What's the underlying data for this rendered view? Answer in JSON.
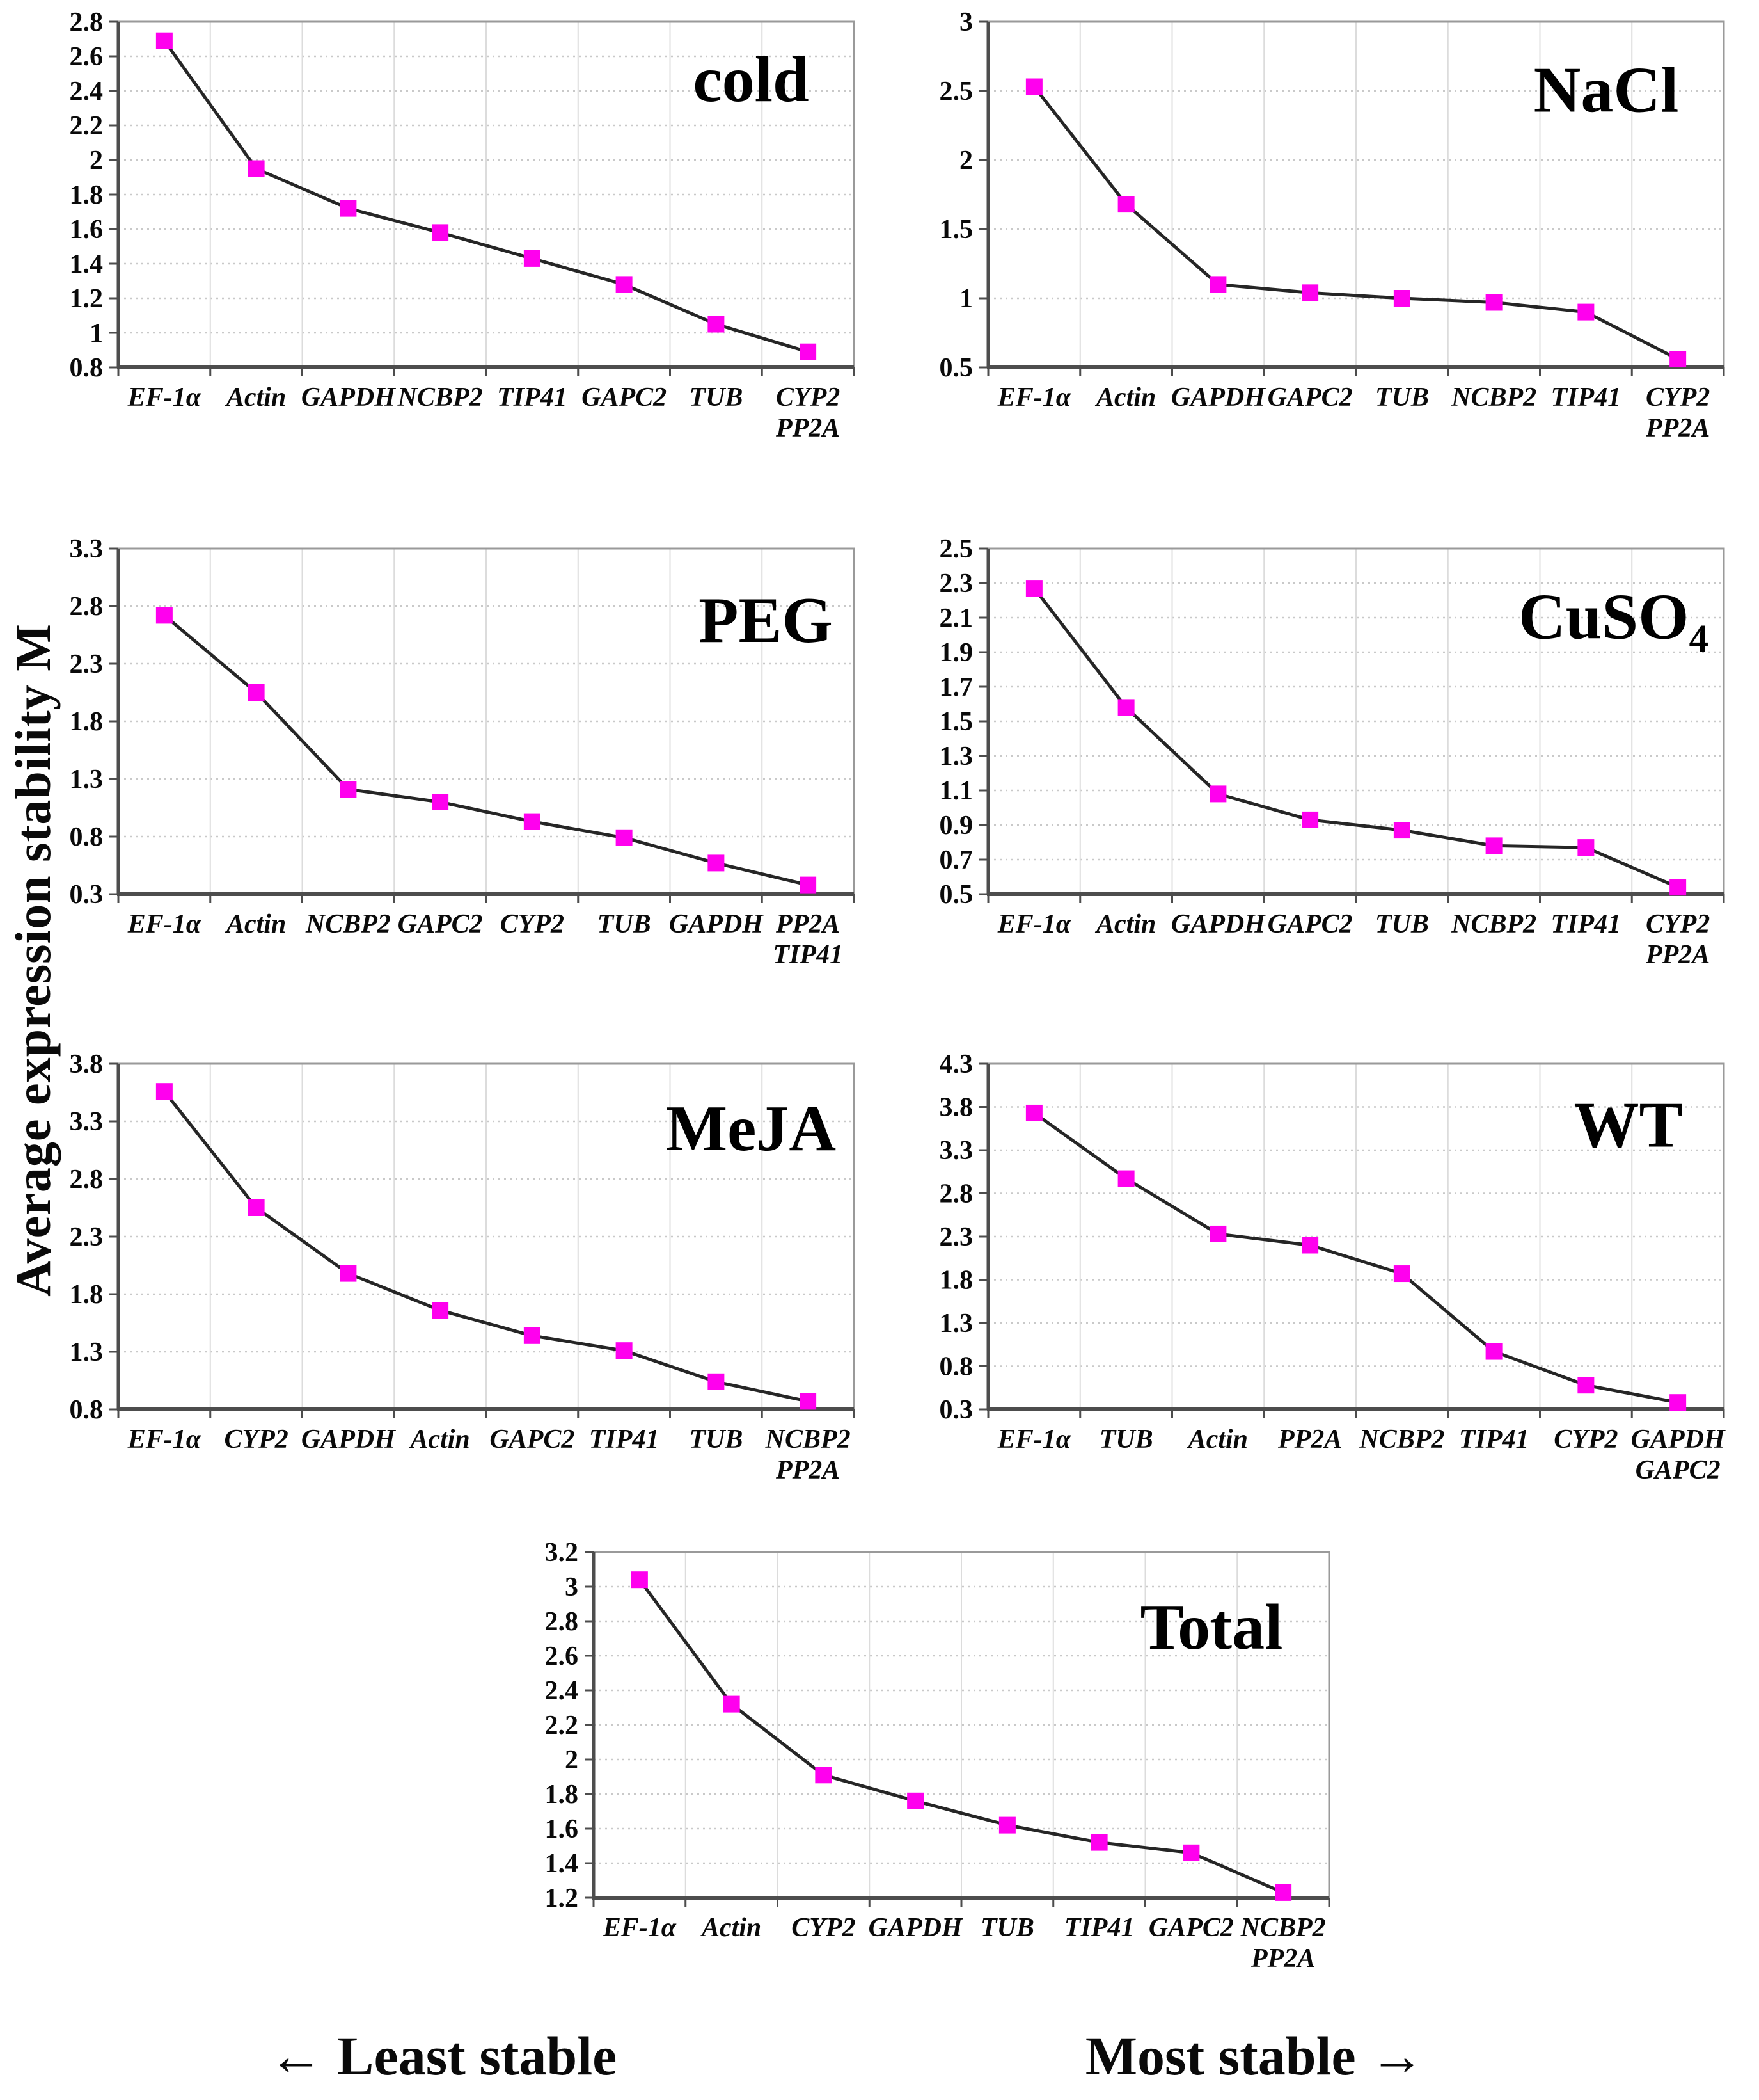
{
  "figure": {
    "ylabel": "Average expression stability M",
    "footer": {
      "left": "← Least stable",
      "right": "Most stable →"
    },
    "colors": {
      "marker": "#ff00ee",
      "line": "#262626",
      "grid_h": "#c9c9c9",
      "grid_v": "#dcdcdc",
      "border": "#9a9a9a",
      "axis": "#4d4d4d",
      "text": "#0a0a0a"
    }
  },
  "chart_data": [
    {
      "type": "line",
      "title": "cold",
      "categories": [
        "EF-1α",
        "Actin",
        "GAPDH",
        "NCBP2",
        "TIP41",
        "GAPC2",
        "TUB",
        "CYP2\nPP2A"
      ],
      "values": [
        2.69,
        1.95,
        1.72,
        1.58,
        1.43,
        1.28,
        1.05,
        0.89
      ],
      "ylim": [
        0.8,
        2.8
      ],
      "ystep": 0.2,
      "grid": true,
      "legend": "none",
      "title_pos": [
        0.86,
        0.23
      ]
    },
    {
      "type": "line",
      "title": "NaCl",
      "categories": [
        "EF-1α",
        "Actin",
        "GAPDH",
        "GAPC2",
        "TUB",
        "NCBP2",
        "TIP41",
        "CYP2\nPP2A"
      ],
      "values": [
        2.53,
        1.68,
        1.1,
        1.04,
        1.0,
        0.97,
        0.9,
        0.56
      ],
      "ylim": [
        0.5,
        3.0
      ],
      "ystep": 0.5,
      "grid": true,
      "legend": "none",
      "title_pos": [
        0.84,
        0.26
      ]
    },
    {
      "type": "line",
      "title": "PEG",
      "categories": [
        "EF-1α",
        "Actin",
        "NCBP2",
        "GAPC2",
        "CYP2",
        "TUB",
        "GAPDH",
        "PP2A\nTIP41"
      ],
      "values": [
        2.72,
        2.05,
        1.21,
        1.1,
        0.93,
        0.79,
        0.57,
        0.38
      ],
      "ylim": [
        0.3,
        3.3
      ],
      "ystep": 0.5,
      "grid": true,
      "legend": "none",
      "title_pos": [
        0.88,
        0.27
      ]
    },
    {
      "type": "line",
      "title": "CuSO₄",
      "categories": [
        "EF-1α",
        "Actin",
        "GAPDH",
        "GAPC2",
        "TUB",
        "NCBP2",
        "TIP41",
        "CYP2\nPP2A"
      ],
      "values": [
        2.27,
        1.58,
        1.08,
        0.93,
        0.87,
        0.78,
        0.77,
        0.54
      ],
      "ylim": [
        0.5,
        2.5
      ],
      "ystep": 0.2,
      "grid": true,
      "legend": "none",
      "title_pos": [
        0.85,
        0.26
      ]
    },
    {
      "type": "line",
      "title": "MeJA",
      "categories": [
        "EF-1α",
        "CYP2",
        "GAPDH",
        "Actin",
        "GAPC2",
        "TIP41",
        "TUB",
        "NCBP2\nPP2A"
      ],
      "values": [
        3.56,
        2.55,
        1.98,
        1.66,
        1.44,
        1.31,
        1.04,
        0.87
      ],
      "ylim": [
        0.8,
        3.8
      ],
      "ystep": 0.5,
      "grid": true,
      "legend": "none",
      "title_pos": [
        0.86,
        0.25
      ]
    },
    {
      "type": "line",
      "title": "WT",
      "categories": [
        "EF-1α",
        "TUB",
        "Actin",
        "PP2A",
        "NCBP2",
        "TIP41",
        "CYP2",
        "GAPDH\nGAPC2"
      ],
      "values": [
        3.73,
        2.97,
        2.33,
        2.2,
        1.87,
        0.97,
        0.58,
        0.38
      ],
      "ylim": [
        0.3,
        4.3
      ],
      "ystep": 0.5,
      "grid": true,
      "legend": "none",
      "title_pos": [
        0.87,
        0.24
      ]
    },
    {
      "type": "line",
      "title": "Total",
      "categories": [
        "EF-1α",
        "Actin",
        "CYP2",
        "GAPDH",
        "TUB",
        "TIP41",
        "GAPC2",
        "NCBP2\nPP2A"
      ],
      "values": [
        3.04,
        2.32,
        1.91,
        1.76,
        1.62,
        1.52,
        1.46,
        1.23
      ],
      "ylim": [
        1.2,
        3.2
      ],
      "ystep": 0.2,
      "grid": true,
      "legend": "none",
      "title_pos": [
        0.84,
        0.28
      ]
    }
  ]
}
